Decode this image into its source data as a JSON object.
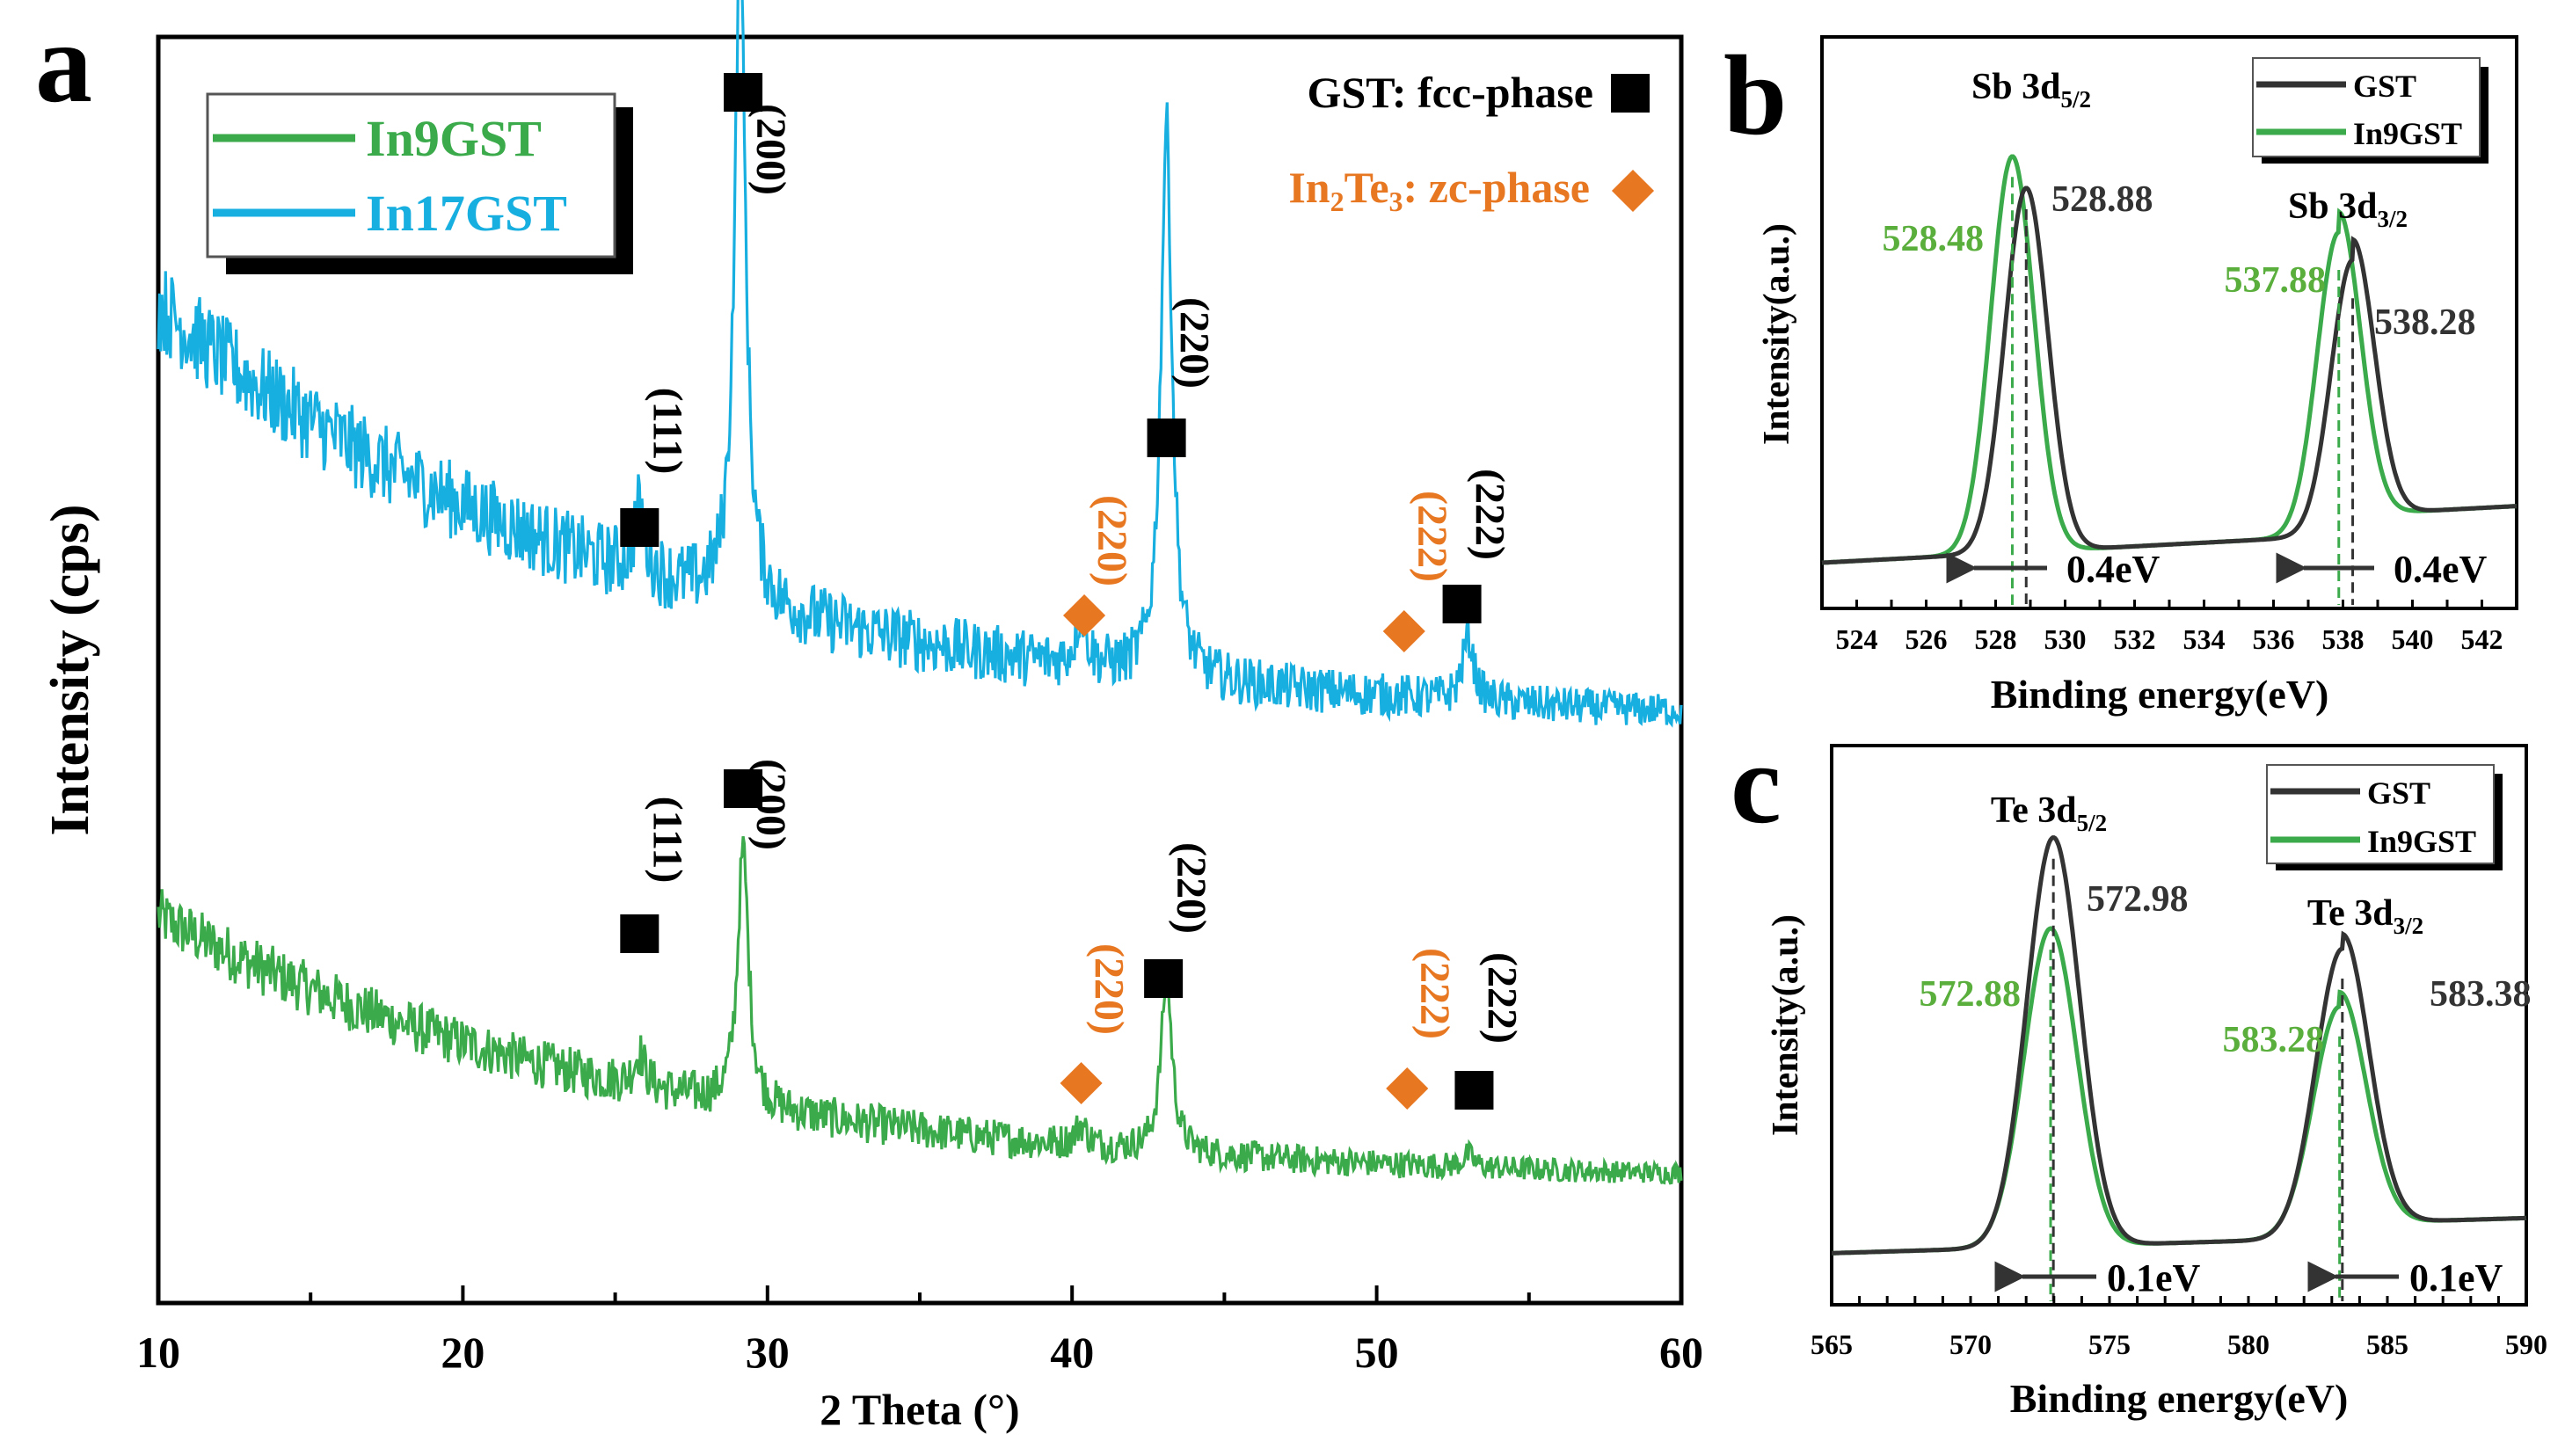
{
  "colors": {
    "green": "#3aaa4a",
    "blue": "#17aee0",
    "black": "#000000",
    "dark": "#333333",
    "orange": "#e87722",
    "label_green": "#5aae3c"
  },
  "chart_data": [
    {
      "panel": "a",
      "type": "line",
      "xlabel": "2 Theta (°)",
      "ylabel": "Intensity (cps)",
      "xlim": [
        10,
        60
      ],
      "x_ticks": [
        "10",
        "20",
        "30",
        "40",
        "50",
        "60"
      ],
      "legend": {
        "position": "top-left",
        "entries": [
          "In9GST",
          "In17GST"
        ]
      },
      "phase_legend": {
        "gst_label": "GST: fcc-phase",
        "in2te3_pre": "In",
        "in2te3_sub1": "2",
        "in2te3_mid": "Te",
        "in2te3_sub2": "3",
        "in2te3_post": ": zc-phase"
      },
      "series": [
        {
          "name": "In9GST",
          "background_start": 0.72,
          "background_end": 0.07,
          "noise": 0.1,
          "peaks": [
            [
              25.8,
              0.08
            ],
            [
              29.2,
              0.62
            ],
            [
              40.3,
              0.05
            ],
            [
              43.1,
              0.42
            ],
            [
              53.0,
              0.03
            ]
          ]
        },
        {
          "name": "In17GST",
          "background_start": 0.72,
          "background_end": 0.07,
          "noise": 0.1,
          "peaks": [
            [
              25.8,
              0.1
            ],
            [
              29.1,
              1.0
            ],
            [
              40.3,
              0.08
            ],
            [
              43.1,
              0.85
            ],
            [
              53.0,
              0.1
            ]
          ]
        }
      ],
      "peak_labels_top": [
        {
          "label": "(111)",
          "x": 25.8,
          "phase": "fcc"
        },
        {
          "label": "(200)",
          "x": 29.2,
          "phase": "fcc"
        },
        {
          "label": "(220)",
          "x": 40.4,
          "phase": "zc"
        },
        {
          "label": "(220)",
          "x": 43.1,
          "phase": "fcc"
        },
        {
          "label": "(222)",
          "x": 50.9,
          "phase": "zc"
        },
        {
          "label": "(222)",
          "x": 52.8,
          "phase": "fcc"
        }
      ],
      "peak_labels_bottom": [
        {
          "label": "(111)",
          "x": 25.8,
          "phase": "fcc"
        },
        {
          "label": "(200)",
          "x": 29.2,
          "phase": "fcc"
        },
        {
          "label": "(220)",
          "x": 40.3,
          "phase": "zc"
        },
        {
          "label": "(220)",
          "x": 43.0,
          "phase": "fcc"
        },
        {
          "label": "(222)",
          "x": 51.0,
          "phase": "zc"
        },
        {
          "label": "(222)",
          "x": 53.2,
          "phase": "fcc"
        }
      ]
    },
    {
      "panel": "b",
      "type": "line",
      "xlabel": "Binding energy(eV)",
      "ylabel": "Intensity(a.u.)",
      "xlim": [
        523,
        543
      ],
      "x_ticks": [
        "524",
        "526",
        "528",
        "530",
        "532",
        "534",
        "536",
        "538",
        "540",
        "542"
      ],
      "legend": {
        "position": "top-right",
        "entries": [
          "GST",
          "In9GST"
        ]
      },
      "peak_names": [
        {
          "pre": "Sb 3d",
          "sub": "5/2"
        },
        {
          "pre": "Sb 3d",
          "sub": "3/2"
        }
      ],
      "series": [
        {
          "name": "GST",
          "peaks": [
            528.88,
            538.28
          ],
          "values": [
            "528.88",
            "538.28"
          ]
        },
        {
          "name": "In9GST",
          "peaks": [
            528.48,
            537.88
          ],
          "values": [
            "528.48",
            "537.88"
          ]
        }
      ],
      "shift_label": "0.4eV"
    },
    {
      "panel": "c",
      "type": "line",
      "xlabel": "Binding energy(eV)",
      "ylabel": "Intensity(a.u.)",
      "xlim": [
        565,
        590
      ],
      "x_ticks": [
        "565",
        "570",
        "575",
        "580",
        "585",
        "590"
      ],
      "legend": {
        "position": "top-right",
        "entries": [
          "GST",
          "In9GST"
        ]
      },
      "peak_names": [
        {
          "pre": "Te 3d",
          "sub": "5/2"
        },
        {
          "pre": "Te 3d",
          "sub": "3/2"
        }
      ],
      "series": [
        {
          "name": "GST",
          "peaks": [
            572.98,
            583.38
          ],
          "values": [
            "572.98",
            "583.38"
          ]
        },
        {
          "name": "In9GST",
          "peaks": [
            572.88,
            583.28
          ],
          "values": [
            "572.88",
            "583.28"
          ]
        }
      ],
      "shift_label": "0.1eV"
    }
  ]
}
